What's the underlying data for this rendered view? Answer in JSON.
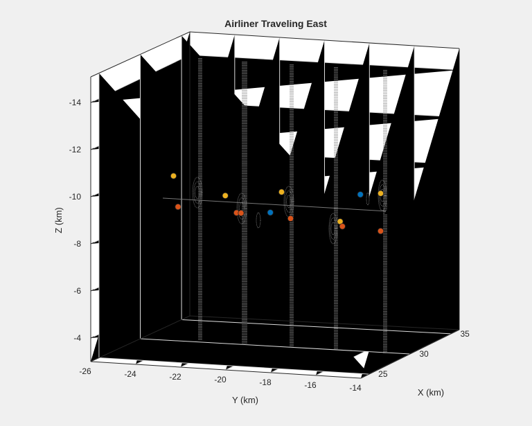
{
  "chart_data": {
    "type": "scatter3d",
    "title": "Airliner Traveling East",
    "xlabel": "X (km)",
    "ylabel": "Y (km)",
    "zlabel": "Z (km)",
    "z_axis_reversed": true,
    "grid": true,
    "legend": "none",
    "z_ticks": [
      "-14",
      "-12",
      "-10",
      "-8",
      "-6",
      "-4"
    ],
    "y_ticks": [
      "-26",
      "-24",
      "-22",
      "-20",
      "-18",
      "-16",
      "-14"
    ],
    "x_ticks": [
      "25",
      "30",
      "35"
    ],
    "colors": {
      "track": "#777777",
      "truth": "#000000",
      "detection_blue": "#0072bd",
      "detection_yellow": "#edb120",
      "detection_red": "#d95319",
      "beam": "#8a8a8a"
    },
    "series": [
      {
        "name": "",
        "color": "#0072bd",
        "points": [
          {
            "y": -19.5,
            "z": -8.8
          },
          {
            "y": -15.5,
            "z": -9.8
          }
        ]
      },
      {
        "name": "",
        "color": "#edb120",
        "points": [
          {
            "y": -23.8,
            "z": -10.1
          },
          {
            "y": -21.5,
            "z": -9.4
          },
          {
            "y": -19.0,
            "z": -9.7
          },
          {
            "y": -16.4,
            "z": -8.6
          },
          {
            "y": -14.6,
            "z": -9.9
          }
        ]
      },
      {
        "name": "",
        "color": "#d95319",
        "points": [
          {
            "y": -23.6,
            "z": -8.8
          },
          {
            "y": -21.0,
            "z": -8.7
          },
          {
            "y": -20.8,
            "z": -8.7
          },
          {
            "y": -18.6,
            "z": -8.6
          },
          {
            "y": -16.3,
            "z": -8.4
          },
          {
            "y": -14.6,
            "z": -8.3
          }
        ]
      }
    ]
  }
}
